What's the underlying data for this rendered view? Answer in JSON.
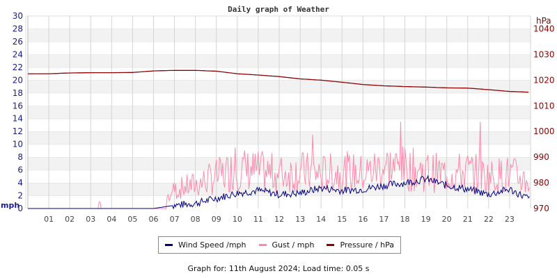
{
  "chart_data": {
    "type": "line",
    "title": "Daily graph of Weather",
    "xlabel": "",
    "ylabel": "mph",
    "ylabel_right": "hPa",
    "ylim": [
      0,
      30
    ],
    "ylim_right": [
      970,
      1045
    ],
    "grid": true,
    "legend_position": "bottom",
    "x_ticks": [
      "01",
      "02",
      "03",
      "04",
      "05",
      "06",
      "07",
      "08",
      "09",
      "10",
      "11",
      "12",
      "13",
      "14",
      "15",
      "16",
      "17",
      "18",
      "19",
      "20",
      "21",
      "22",
      "23"
    ],
    "y_ticks_left": [
      "0",
      "2",
      "4",
      "6",
      "8",
      "10",
      "12",
      "14",
      "16",
      "18",
      "20",
      "22",
      "24",
      "26",
      "28",
      "30"
    ],
    "y_ticks_right": [
      "970",
      "980",
      "990",
      "1000",
      "1010",
      "1020",
      "1030",
      "1040"
    ],
    "x": [
      0,
      1,
      2,
      3,
      4,
      5,
      6,
      7,
      8,
      9,
      10,
      11,
      12,
      13,
      14,
      15,
      16,
      17,
      18,
      19,
      20,
      21,
      22,
      23,
      24
    ],
    "series": [
      {
        "name": "Wind Speed /mph",
        "color": "#000080",
        "axis": "left",
        "values": [
          0,
          0,
          0,
          0,
          0,
          0,
          0,
          0.5,
          0.8,
          1.6,
          2.4,
          2.8,
          2.2,
          2.4,
          3.2,
          2.8,
          3.0,
          3.6,
          4.0,
          4.6,
          3.6,
          3.0,
          2.2,
          3.0,
          1.4
        ]
      },
      {
        "name": "Gust / mph",
        "color": "#ff88aa",
        "axis": "left",
        "values": [
          0,
          0,
          0,
          0,
          0,
          0,
          0,
          3.5,
          4.5,
          6.0,
          7.5,
          7.0,
          6.5,
          7.0,
          6.5,
          7.0,
          6.5,
          8.0,
          7.5,
          7.0,
          6.5,
          7.0,
          6.0,
          6.5,
          5.0
        ],
        "peaks": {
          "03.4": 1.0,
          "09.9": 9.5,
          "13.6": 11.5,
          "17.8": 13.5,
          "21.6": 13.5
        }
      },
      {
        "name": "Pressure / hPa",
        "color": "#8b0000",
        "axis": "right",
        "values": [
          1022.5,
          1022.5,
          1022.8,
          1022.9,
          1022.9,
          1023.0,
          1023.6,
          1023.8,
          1023.8,
          1023.5,
          1022.5,
          1022.0,
          1021.4,
          1020.5,
          1020.0,
          1019.2,
          1018.3,
          1017.8,
          1017.5,
          1017.3,
          1017.0,
          1016.9,
          1016.3,
          1015.6,
          1015.3
        ]
      }
    ]
  },
  "legend": {
    "items": [
      {
        "label": "Wind Speed /mph",
        "color": "#000080"
      },
      {
        "label": "Gust / mph",
        "color": "#ff88aa"
      },
      {
        "label": "Pressure / hPa",
        "color": "#8b0000"
      }
    ]
  },
  "footer": {
    "text": "Graph for: 11th August 2024; Load time: 0.05 s"
  }
}
